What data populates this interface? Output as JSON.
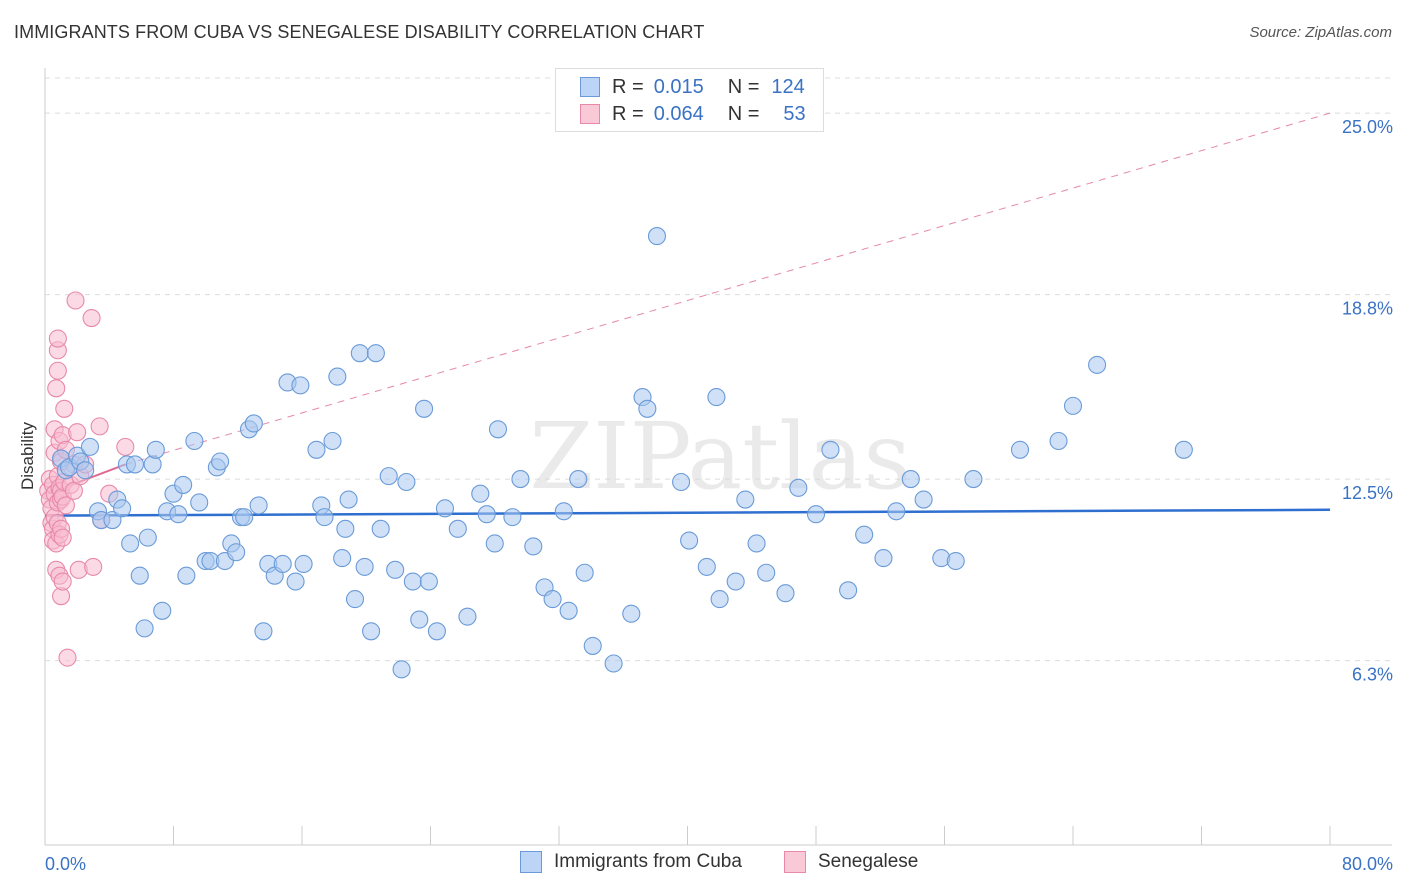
{
  "title": "IMMIGRANTS FROM CUBA VS SENEGALESE DISABILITY CORRELATION CHART",
  "source": "Source: ZipAtlas.com",
  "watermark": "ZIPatlas",
  "legend": {
    "rows": [
      {
        "r_label": "R =",
        "r_value": "0.015",
        "n_label": "N =",
        "n_value": "124"
      },
      {
        "r_label": "R =",
        "r_value": "0.064",
        "n_label": "N =",
        "n_value": "53"
      }
    ]
  },
  "colors": {
    "blue_fill": "#a9c8f0",
    "blue_stroke": "#6a9bd8",
    "blue_line": "#2f6fcf",
    "pink_fill": "#f7bcd0",
    "pink_stroke": "#e889aa",
    "pink_line": "#e06a95",
    "axis_text": "#3a72c4",
    "grid": "#dcdcdc"
  },
  "chart_data": {
    "type": "scatter",
    "title": "IMMIGRANTS FROM CUBA VS SENEGALESE DISABILITY CORRELATION CHART",
    "xlabel": "",
    "ylabel": "Disability",
    "xlim": [
      0,
      80
    ],
    "ylim": [
      0,
      26.2
    ],
    "x_tick_labels": [
      {
        "value": 0,
        "label": "0.0%"
      },
      {
        "value": 80,
        "label": "80.0%"
      }
    ],
    "y_ticks": [
      {
        "value": 6.3,
        "label": "6.3%"
      },
      {
        "value": 12.5,
        "label": "12.5%"
      },
      {
        "value": 18.8,
        "label": "18.8%"
      },
      {
        "value": 25.0,
        "label": "25.0%"
      }
    ],
    "series": [
      {
        "name": "Immigrants from Cuba",
        "trend": {
          "x": [
            0,
            80
          ],
          "y": [
            11.25,
            11.45
          ]
        },
        "points": [
          [
            1.0,
            13.2
          ],
          [
            1.3,
            12.8
          ],
          [
            1.5,
            12.9
          ],
          [
            2.0,
            13.3
          ],
          [
            2.2,
            13.1
          ],
          [
            2.5,
            12.8
          ],
          [
            2.8,
            13.6
          ],
          [
            3.3,
            11.4
          ],
          [
            3.5,
            11.1
          ],
          [
            4.2,
            11.1
          ],
          [
            4.5,
            11.8
          ],
          [
            4.8,
            11.5
          ],
          [
            5.1,
            13.0
          ],
          [
            5.3,
            10.3
          ],
          [
            5.6,
            13.0
          ],
          [
            5.9,
            9.2
          ],
          [
            6.2,
            7.4
          ],
          [
            6.4,
            10.5
          ],
          [
            6.7,
            13.0
          ],
          [
            6.9,
            13.5
          ],
          [
            7.3,
            8.0
          ],
          [
            7.6,
            11.4
          ],
          [
            8.0,
            12.0
          ],
          [
            8.3,
            11.3
          ],
          [
            8.6,
            12.3
          ],
          [
            8.8,
            9.2
          ],
          [
            9.3,
            13.8
          ],
          [
            9.6,
            11.7
          ],
          [
            10.0,
            9.7
          ],
          [
            10.3,
            9.7
          ],
          [
            10.7,
            12.9
          ],
          [
            10.9,
            13.1
          ],
          [
            11.2,
            9.7
          ],
          [
            11.6,
            10.3
          ],
          [
            11.9,
            10.0
          ],
          [
            12.2,
            11.2
          ],
          [
            12.4,
            11.2
          ],
          [
            12.7,
            14.2
          ],
          [
            13.0,
            14.4
          ],
          [
            13.3,
            11.6
          ],
          [
            13.6,
            7.3
          ],
          [
            13.9,
            9.6
          ],
          [
            14.3,
            9.2
          ],
          [
            14.8,
            9.6
          ],
          [
            15.1,
            15.8
          ],
          [
            15.6,
            9.0
          ],
          [
            15.9,
            15.7
          ],
          [
            16.1,
            9.6
          ],
          [
            16.9,
            13.5
          ],
          [
            17.2,
            11.6
          ],
          [
            17.4,
            11.2
          ],
          [
            17.9,
            13.8
          ],
          [
            18.2,
            16.0
          ],
          [
            18.5,
            9.8
          ],
          [
            18.7,
            10.8
          ],
          [
            18.9,
            11.8
          ],
          [
            19.3,
            8.4
          ],
          [
            19.6,
            16.8
          ],
          [
            19.9,
            9.5
          ],
          [
            20.3,
            7.3
          ],
          [
            20.6,
            16.8
          ],
          [
            20.9,
            10.8
          ],
          [
            21.4,
            12.6
          ],
          [
            21.8,
            9.4
          ],
          [
            22.2,
            6.0
          ],
          [
            22.5,
            12.4
          ],
          [
            22.9,
            9.0
          ],
          [
            23.3,
            7.7
          ],
          [
            23.6,
            14.9
          ],
          [
            23.9,
            9.0
          ],
          [
            24.4,
            7.3
          ],
          [
            24.9,
            11.5
          ],
          [
            25.7,
            10.8
          ],
          [
            26.3,
            7.8
          ],
          [
            27.1,
            12.0
          ],
          [
            27.5,
            11.3
          ],
          [
            28.0,
            10.3
          ],
          [
            28.2,
            14.2
          ],
          [
            29.1,
            11.2
          ],
          [
            29.6,
            12.5
          ],
          [
            30.4,
            10.2
          ],
          [
            31.1,
            8.8
          ],
          [
            31.6,
            8.4
          ],
          [
            32.3,
            11.4
          ],
          [
            32.6,
            8.0
          ],
          [
            33.2,
            12.5
          ],
          [
            33.6,
            9.3
          ],
          [
            34.1,
            6.8
          ],
          [
            35.4,
            6.2
          ],
          [
            36.5,
            7.9
          ],
          [
            37.2,
            15.3
          ],
          [
            37.5,
            14.9
          ],
          [
            38.1,
            20.8
          ],
          [
            39.6,
            12.4
          ],
          [
            40.1,
            10.4
          ],
          [
            41.2,
            9.5
          ],
          [
            41.8,
            15.3
          ],
          [
            42.0,
            8.4
          ],
          [
            43.0,
            9.0
          ],
          [
            43.6,
            11.8
          ],
          [
            44.3,
            10.3
          ],
          [
            44.9,
            9.3
          ],
          [
            46.1,
            8.6
          ],
          [
            46.9,
            12.2
          ],
          [
            48.0,
            11.3
          ],
          [
            48.9,
            13.5
          ],
          [
            50.0,
            8.7
          ],
          [
            51.0,
            10.6
          ],
          [
            52.2,
            9.8
          ],
          [
            53.0,
            11.4
          ],
          [
            53.9,
            12.5
          ],
          [
            54.7,
            11.8
          ],
          [
            55.8,
            9.8
          ],
          [
            56.7,
            9.7
          ],
          [
            57.8,
            12.5
          ],
          [
            60.7,
            13.5
          ],
          [
            63.1,
            13.8
          ],
          [
            64.0,
            15.0
          ],
          [
            65.5,
            16.4
          ],
          [
            70.9,
            13.5
          ]
        ]
      },
      {
        "name": "Senegalese",
        "trend": {
          "x": [
            0.2,
            5.0
          ],
          "y": [
            12.0,
            13.0
          ],
          "extension": {
            "x": [
              5.0,
              80
            ],
            "y": [
              13.0,
              25.0
            ]
          }
        },
        "points": [
          [
            0.2,
            12.1
          ],
          [
            0.3,
            12.5
          ],
          [
            0.3,
            11.8
          ],
          [
            0.4,
            11.5
          ],
          [
            0.4,
            11.0
          ],
          [
            0.5,
            10.8
          ],
          [
            0.5,
            10.4
          ],
          [
            0.5,
            12.3
          ],
          [
            0.6,
            12.0
          ],
          [
            0.6,
            11.2
          ],
          [
            0.6,
            13.4
          ],
          [
            0.6,
            14.2
          ],
          [
            0.7,
            9.4
          ],
          [
            0.7,
            10.3
          ],
          [
            0.7,
            15.6
          ],
          [
            0.8,
            12.6
          ],
          [
            0.8,
            11.7
          ],
          [
            0.8,
            11.0
          ],
          [
            0.8,
            16.2
          ],
          [
            0.8,
            16.9
          ],
          [
            0.8,
            17.3
          ],
          [
            0.9,
            12.2
          ],
          [
            0.9,
            13.8
          ],
          [
            0.9,
            10.6
          ],
          [
            0.9,
            9.2
          ],
          [
            1.0,
            8.5
          ],
          [
            1.0,
            13.1
          ],
          [
            1.0,
            12.1
          ],
          [
            1.0,
            11.8
          ],
          [
            1.0,
            10.8
          ],
          [
            1.1,
            14.0
          ],
          [
            1.1,
            11.9
          ],
          [
            1.1,
            9.0
          ],
          [
            1.1,
            10.5
          ],
          [
            1.2,
            14.9
          ],
          [
            1.2,
            12.4
          ],
          [
            1.3,
            13.5
          ],
          [
            1.3,
            11.6
          ],
          [
            1.4,
            6.4
          ],
          [
            1.6,
            12.3
          ],
          [
            1.8,
            12.1
          ],
          [
            1.8,
            13.0
          ],
          [
            1.9,
            18.6
          ],
          [
            2.0,
            14.1
          ],
          [
            2.1,
            9.4
          ],
          [
            2.2,
            12.6
          ],
          [
            2.5,
            13.0
          ],
          [
            2.9,
            18.0
          ],
          [
            3.0,
            9.5
          ],
          [
            3.4,
            14.3
          ],
          [
            3.5,
            11.1
          ],
          [
            4.0,
            12.0
          ],
          [
            5.0,
            13.6
          ]
        ]
      }
    ]
  },
  "bottom_legend": [
    {
      "label": "Immigrants from Cuba"
    },
    {
      "label": "Senegalese"
    }
  ]
}
